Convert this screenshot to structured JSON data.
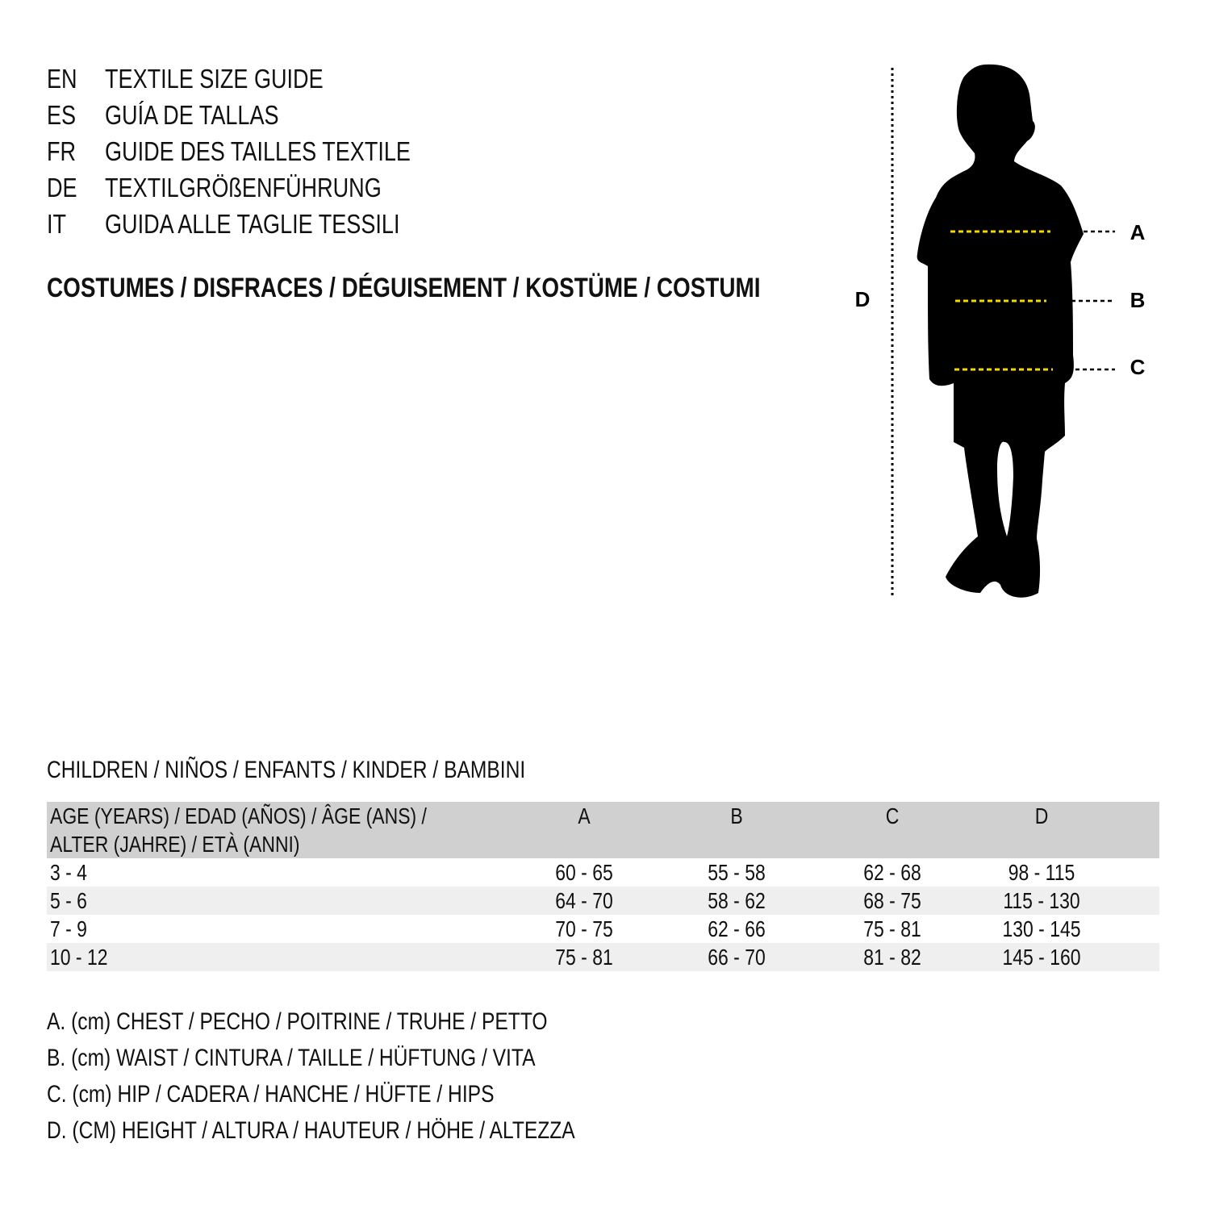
{
  "languages": [
    {
      "code": "EN",
      "title": "TEXTILE SIZE GUIDE"
    },
    {
      "code": "ES",
      "title": "GUÍA DE TALLAS"
    },
    {
      "code": "FR",
      "title": "GUIDE DES TAILLES TEXTILE"
    },
    {
      "code": "DE",
      "title": "TEXTILGRÖßENFÜHRUNG"
    },
    {
      "code": "IT",
      "title": "GUIDA ALLE TAGLIE TESSILI"
    }
  ],
  "subtitle": "COSTUMES / DISFRACES / DÉGUISEMENT / KOSTÜME / COSTUMI",
  "figure": {
    "labels": {
      "a": "A",
      "b": "B",
      "c": "C",
      "d": "D"
    },
    "colors": {
      "silhouette": "#000000",
      "measure_line": "#f5d800"
    }
  },
  "section": "CHILDREN / NIÑOS / ENFANTS / KINDER / BAMBINI",
  "table": {
    "header": {
      "age_line1": "AGE (YEARS) / EDAD (AÑOS) / ÂGE (ANS) /",
      "age_line2": "ALTER (JAHRE) / ETÀ (ANNI)",
      "a": "A",
      "b": "B",
      "c": "C",
      "d": "D"
    },
    "rows": [
      {
        "age": "3 - 4",
        "a": "60 - 65",
        "b": "55 - 58",
        "c": "62 - 68",
        "d": "98 - 115"
      },
      {
        "age": "5 - 6",
        "a": "64 - 70",
        "b": "58 - 62",
        "c": "68 - 75",
        "d": "115 - 130"
      },
      {
        "age": "7 - 9",
        "a": "70 - 75",
        "b": "62 - 66",
        "c": "75 - 81",
        "d": "130 - 145"
      },
      {
        "age": "10 - 12",
        "a": "75 - 81",
        "b": "66 - 70",
        "c": "81 - 82",
        "d": "145 - 160"
      }
    ]
  },
  "legend": [
    "A. (cm) CHEST / PECHO / POITRINE / TRUHE / PETTO",
    "B. (cm) WAIST / CINTURA / TAILLE / HÜFTUNG / VITA",
    "C. (cm) HIP / CADERA / HANCHE / HÜFTE / HIPS",
    "D. (CM) HEIGHT / ALTURA / HAUTEUR / HÖHE / ALTEZZA"
  ]
}
